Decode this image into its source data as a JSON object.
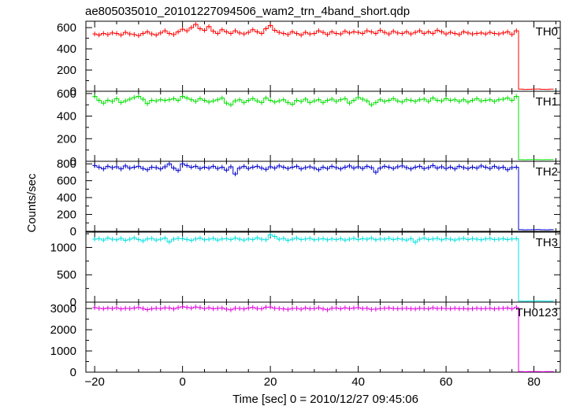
{
  "chart_data": {
    "type": "line",
    "title": "ae805035010_20101227094506_wam2_trn_4band_short.qdp",
    "xlabel": "Time [sec] 0 = 2010/12/27 09:45:06",
    "ylabel": "Counts/sec",
    "xlim": [
      -22,
      86
    ],
    "x_ticks": [
      -20,
      0,
      20,
      40,
      60,
      80
    ],
    "bin_width": 1,
    "drop_time": 76.5,
    "panels": [
      {
        "name": "TH0",
        "color": "#ff0000",
        "ylim": [
          0,
          660
        ],
        "yticks": [
          0,
          200,
          400,
          600
        ],
        "ytick_labels": [
          "0",
          "200",
          "400",
          "600"
        ],
        "series": {
          "x": [
            -20,
            -19,
            -18,
            -17,
            -16,
            -15,
            -14,
            -13,
            -12,
            -11,
            -10,
            -9,
            -8,
            -7,
            -6,
            -5,
            -4,
            -3,
            -2,
            -1,
            0,
            1,
            2,
            3,
            4,
            5,
            6,
            7,
            8,
            9,
            10,
            11,
            12,
            13,
            14,
            15,
            16,
            17,
            18,
            19,
            20,
            21,
            22,
            23,
            24,
            25,
            26,
            27,
            28,
            29,
            30,
            31,
            32,
            33,
            34,
            35,
            36,
            37,
            38,
            39,
            40,
            41,
            42,
            43,
            44,
            45,
            46,
            47,
            48,
            49,
            50,
            51,
            52,
            53,
            54,
            55,
            56,
            57,
            58,
            59,
            60,
            61,
            62,
            63,
            64,
            65,
            66,
            67,
            68,
            69,
            70,
            71,
            72,
            73,
            74,
            75,
            76,
            77,
            78,
            79,
            80,
            81,
            82,
            83,
            84
          ],
          "y": [
            540,
            530,
            545,
            535,
            550,
            545,
            530,
            555,
            540,
            535,
            525,
            545,
            560,
            540,
            530,
            550,
            570,
            545,
            535,
            560,
            585,
            570,
            600,
            630,
            590,
            575,
            610,
            565,
            545,
            580,
            560,
            545,
            570,
            550,
            540,
            555,
            580,
            560,
            545,
            590,
            620,
            575,
            555,
            545,
            535,
            560,
            545,
            530,
            555,
            540,
            545,
            570,
            555,
            535,
            560,
            545,
            540,
            565,
            550,
            560,
            555,
            545,
            570,
            560,
            545,
            575,
            555,
            540,
            565,
            550,
            545,
            560,
            540,
            555,
            570,
            545,
            560,
            545,
            575,
            560,
            540,
            555,
            545,
            535,
            560,
            550,
            540,
            545,
            550,
            540,
            555,
            545,
            540,
            550,
            560,
            535,
            570,
            20,
            18,
            19,
            20,
            21,
            19,
            18,
            20
          ]
        }
      },
      {
        "name": "TH1",
        "color": "#00e000",
        "ylim": [
          0,
          620
        ],
        "yticks": [
          0,
          200,
          400,
          600
        ],
        "ytick_labels": [
          "0",
          "200",
          "400",
          "600"
        ],
        "series": {
          "x": [
            -20,
            -19,
            -18,
            -17,
            -16,
            -15,
            -14,
            -13,
            -12,
            -11,
            -10,
            -9,
            -8,
            -7,
            -6,
            -5,
            -4,
            -3,
            -2,
            -1,
            0,
            1,
            2,
            3,
            4,
            5,
            6,
            7,
            8,
            9,
            10,
            11,
            12,
            13,
            14,
            15,
            16,
            17,
            18,
            19,
            20,
            21,
            22,
            23,
            24,
            25,
            26,
            27,
            28,
            29,
            30,
            31,
            32,
            33,
            34,
            35,
            36,
            37,
            38,
            39,
            40,
            41,
            42,
            43,
            44,
            45,
            46,
            47,
            48,
            49,
            50,
            51,
            52,
            53,
            54,
            55,
            56,
            57,
            58,
            59,
            60,
            61,
            62,
            63,
            64,
            65,
            66,
            67,
            68,
            69,
            70,
            71,
            72,
            73,
            74,
            75,
            76,
            77,
            78,
            79,
            80,
            81,
            82,
            83,
            84
          ],
          "y": [
            575,
            540,
            515,
            540,
            530,
            555,
            520,
            535,
            550,
            565,
            575,
            550,
            510,
            540,
            535,
            545,
            540,
            545,
            555,
            540,
            575,
            560,
            545,
            530,
            555,
            540,
            525,
            535,
            545,
            560,
            515,
            500,
            535,
            545,
            520,
            540,
            555,
            535,
            520,
            560,
            540,
            525,
            535,
            545,
            520,
            505,
            540,
            530,
            550,
            520,
            535,
            545,
            520,
            540,
            550,
            530,
            545,
            555,
            515,
            540,
            565,
            550,
            535,
            500,
            520,
            545,
            530,
            540,
            555,
            535,
            525,
            545,
            540,
            530,
            545,
            550,
            530,
            560,
            540,
            535,
            555,
            540,
            545,
            530,
            545,
            525,
            540,
            555,
            535,
            540,
            545,
            530,
            545,
            550,
            560,
            540,
            575,
            15,
            14,
            15,
            16,
            15,
            14,
            15,
            15
          ]
        }
      },
      {
        "name": "TH2",
        "color": "#0000cc",
        "ylim": [
          0,
          830
        ],
        "yticks": [
          0,
          200,
          400,
          600,
          800
        ],
        "ytick_labels": [
          "0",
          "200",
          "400",
          "600",
          "800"
        ],
        "series": {
          "x": [
            -20,
            -19,
            -18,
            -17,
            -16,
            -15,
            -14,
            -13,
            -12,
            -11,
            -10,
            -9,
            -8,
            -7,
            -6,
            -5,
            -4,
            -3,
            -2,
            -1,
            0,
            1,
            2,
            3,
            4,
            5,
            6,
            7,
            8,
            9,
            10,
            11,
            12,
            13,
            14,
            15,
            16,
            17,
            18,
            19,
            20,
            21,
            22,
            23,
            24,
            25,
            26,
            27,
            28,
            29,
            30,
            31,
            32,
            33,
            34,
            35,
            36,
            37,
            38,
            39,
            40,
            41,
            42,
            43,
            44,
            45,
            46,
            47,
            48,
            49,
            50,
            51,
            52,
            53,
            54,
            55,
            56,
            57,
            58,
            59,
            60,
            61,
            62,
            63,
            64,
            65,
            66,
            67,
            68,
            69,
            70,
            71,
            72,
            73,
            74,
            75,
            76,
            77,
            78,
            79,
            80,
            81,
            82,
            83,
            84
          ],
          "y": [
            780,
            760,
            740,
            770,
            755,
            765,
            740,
            775,
            750,
            760,
            770,
            745,
            730,
            760,
            755,
            740,
            765,
            800,
            750,
            720,
            800,
            780,
            760,
            770,
            745,
            760,
            750,
            770,
            745,
            760,
            725,
            765,
            680,
            750,
            770,
            745,
            760,
            770,
            750,
            735,
            765,
            750,
            775,
            760,
            745,
            760,
            770,
            740,
            755,
            765,
            750,
            730,
            760,
            745,
            770,
            755,
            740,
            760,
            775,
            750,
            765,
            745,
            770,
            755,
            700,
            750,
            770,
            760,
            745,
            765,
            775,
            755,
            740,
            760,
            770,
            745,
            755,
            780,
            750,
            765,
            745,
            760,
            740,
            770,
            755,
            745,
            760,
            750,
            775,
            760,
            745,
            770,
            750,
            760,
            730,
            755,
            760,
            20,
            18,
            19,
            20,
            21,
            19,
            18,
            20
          ]
        }
      },
      {
        "name": "TH3",
        "color": "#00e0e0",
        "ylim": [
          0,
          1280
        ],
        "yticks": [
          0,
          500,
          1000
        ],
        "ytick_labels": [
          "0",
          "500",
          "1000"
        ],
        "series": {
          "x": [
            -20,
            -19,
            -18,
            -17,
            -16,
            -15,
            -14,
            -13,
            -12,
            -11,
            -10,
            -9,
            -8,
            -7,
            -6,
            -5,
            -4,
            -3,
            -2,
            -1,
            0,
            1,
            2,
            3,
            4,
            5,
            6,
            7,
            8,
            9,
            10,
            11,
            12,
            13,
            14,
            15,
            16,
            17,
            18,
            19,
            20,
            21,
            22,
            23,
            24,
            25,
            26,
            27,
            28,
            29,
            30,
            31,
            32,
            33,
            34,
            35,
            36,
            37,
            38,
            39,
            40,
            41,
            42,
            43,
            44,
            45,
            46,
            47,
            48,
            49,
            50,
            51,
            52,
            53,
            54,
            55,
            56,
            57,
            58,
            59,
            60,
            61,
            62,
            63,
            64,
            65,
            66,
            67,
            68,
            69,
            70,
            71,
            72,
            73,
            74,
            75,
            76,
            77,
            78,
            79,
            80,
            81,
            82,
            83,
            84
          ],
          "y": [
            1150,
            1160,
            1135,
            1170,
            1150,
            1140,
            1165,
            1130,
            1150,
            1175,
            1145,
            1120,
            1155,
            1165,
            1135,
            1150,
            1170,
            1100,
            1150,
            1165,
            1160,
            1145,
            1130,
            1155,
            1170,
            1140,
            1150,
            1165,
            1135,
            1155,
            1160,
            1145,
            1170,
            1150,
            1135,
            1155,
            1145,
            1175,
            1150,
            1140,
            1230,
            1200,
            1150,
            1165,
            1130,
            1150,
            1170,
            1145,
            1155,
            1165,
            1140,
            1150,
            1160,
            1140,
            1155,
            1145,
            1160,
            1135,
            1150,
            1165,
            1145,
            1160,
            1150,
            1170,
            1140,
            1155,
            1150,
            1165,
            1145,
            1160,
            1150,
            1135,
            1160,
            1095,
            1150,
            1170,
            1145,
            1155,
            1165,
            1140,
            1160,
            1150,
            1135,
            1155,
            1165,
            1145,
            1160,
            1150,
            1140,
            1155,
            1165,
            1145,
            1150,
            1160,
            1145,
            1155,
            1160,
            20,
            18,
            19,
            20,
            21,
            19,
            18,
            20
          ]
        }
      },
      {
        "name": "TH0123",
        "color": "#e000e0",
        "ylim": [
          0,
          3300
        ],
        "yticks": [
          0,
          1000,
          2000,
          3000
        ],
        "ytick_labels": [
          "0",
          "1000",
          "2000",
          "3000"
        ],
        "series": {
          "x": [
            -20,
            -19,
            -18,
            -17,
            -16,
            -15,
            -14,
            -13,
            -12,
            -11,
            -10,
            -9,
            -8,
            -7,
            -6,
            -5,
            -4,
            -3,
            -2,
            -1,
            0,
            1,
            2,
            3,
            4,
            5,
            6,
            7,
            8,
            9,
            10,
            11,
            12,
            13,
            14,
            15,
            16,
            17,
            18,
            19,
            20,
            21,
            22,
            23,
            24,
            25,
            26,
            27,
            28,
            29,
            30,
            31,
            32,
            33,
            34,
            35,
            36,
            37,
            38,
            39,
            40,
            41,
            42,
            43,
            44,
            45,
            46,
            47,
            48,
            49,
            50,
            51,
            52,
            53,
            54,
            55,
            56,
            57,
            58,
            59,
            60,
            61,
            62,
            63,
            64,
            65,
            66,
            67,
            68,
            69,
            70,
            71,
            72,
            73,
            74,
            75,
            76,
            77,
            78,
            79,
            80,
            81,
            82,
            83,
            84
          ],
          "y": [
            3040,
            3010,
            2990,
            3020,
            3000,
            3030,
            2980,
            3010,
            3000,
            3020,
            3050,
            3000,
            2950,
            2990,
            3010,
            3000,
            3030,
            3020,
            2980,
            3040,
            3080,
            3050,
            3020,
            3070,
            3040,
            3000,
            3030,
            2990,
            3010,
            3020,
            2970,
            2940,
            3010,
            3000,
            2980,
            3020,
            3050,
            3000,
            2990,
            3060,
            3070,
            3010,
            3000,
            2980,
            2960,
            3000,
            3010,
            2970,
            3020,
            2990,
            3000,
            3030,
            2980,
            2940,
            3010,
            3020,
            2990,
            3030,
            3000,
            3020,
            3040,
            3000,
            3010,
            2960,
            2970,
            3000,
            3010,
            3020,
            3000,
            2990,
            3000,
            3010,
            2990,
            2980,
            3010,
            3000,
            2990,
            3030,
            3000,
            3010,
            3000,
            2990,
            3010,
            2990,
            3000,
            2980,
            2990,
            3010,
            2990,
            3000,
            3010,
            2980,
            3000,
            3010,
            3020,
            2990,
            3050,
            30,
            25,
            28,
            30,
            27,
            25,
            28,
            30
          ]
        }
      }
    ]
  }
}
